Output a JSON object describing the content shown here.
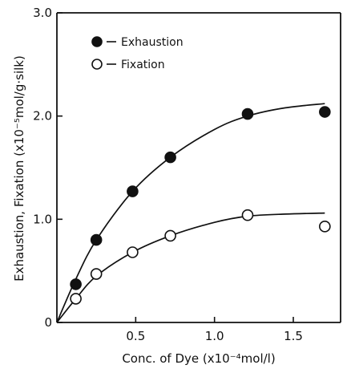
{
  "chart_data": {
    "type": "scatter",
    "xlabel": "Conc. of Dye (x10⁻⁴mol/l)",
    "ylabel": "Exhaustion, Fixation (x10⁻⁵mol/g·silk)",
    "xlim": [
      0,
      1.8
    ],
    "ylim": [
      0,
      3.0
    ],
    "x_ticks": [
      0.5,
      1.0,
      1.5
    ],
    "x_tick_labels": [
      "0.5",
      "1.0",
      "1.5"
    ],
    "y_ticks": [
      0,
      1.0,
      2.0,
      3.0
    ],
    "y_tick_labels": [
      "0",
      "1.0",
      "2.0",
      "3.0"
    ],
    "grid": false,
    "legend_position": "top-left",
    "series": [
      {
        "name": "Exhaustion",
        "marker": "filled-circle",
        "color": "#111111",
        "points": [
          {
            "x": 0.12,
            "y": 0.37
          },
          {
            "x": 0.25,
            "y": 0.8
          },
          {
            "x": 0.48,
            "y": 1.27
          },
          {
            "x": 0.72,
            "y": 1.6
          },
          {
            "x": 1.21,
            "y": 2.02
          },
          {
            "x": 1.7,
            "y": 2.04
          }
        ],
        "curve": [
          {
            "x": 0.0,
            "y": 0.0
          },
          {
            "x": 0.12,
            "y": 0.42
          },
          {
            "x": 0.25,
            "y": 0.8
          },
          {
            "x": 0.48,
            "y": 1.27
          },
          {
            "x": 0.72,
            "y": 1.6
          },
          {
            "x": 1.0,
            "y": 1.87
          },
          {
            "x": 1.21,
            "y": 2.0
          },
          {
            "x": 1.45,
            "y": 2.08
          },
          {
            "x": 1.7,
            "y": 2.12
          }
        ]
      },
      {
        "name": "Fixation",
        "marker": "open-circle",
        "color": "#111111",
        "points": [
          {
            "x": 0.12,
            "y": 0.23
          },
          {
            "x": 0.25,
            "y": 0.47
          },
          {
            "x": 0.48,
            "y": 0.68
          },
          {
            "x": 0.72,
            "y": 0.84
          },
          {
            "x": 1.21,
            "y": 1.04
          },
          {
            "x": 1.7,
            "y": 0.93
          }
        ],
        "curve": [
          {
            "x": 0.0,
            "y": 0.0
          },
          {
            "x": 0.12,
            "y": 0.23
          },
          {
            "x": 0.25,
            "y": 0.45
          },
          {
            "x": 0.48,
            "y": 0.68
          },
          {
            "x": 0.72,
            "y": 0.84
          },
          {
            "x": 1.0,
            "y": 0.97
          },
          {
            "x": 1.21,
            "y": 1.03
          },
          {
            "x": 1.45,
            "y": 1.05
          },
          {
            "x": 1.7,
            "y": 1.06
          }
        ]
      }
    ]
  }
}
